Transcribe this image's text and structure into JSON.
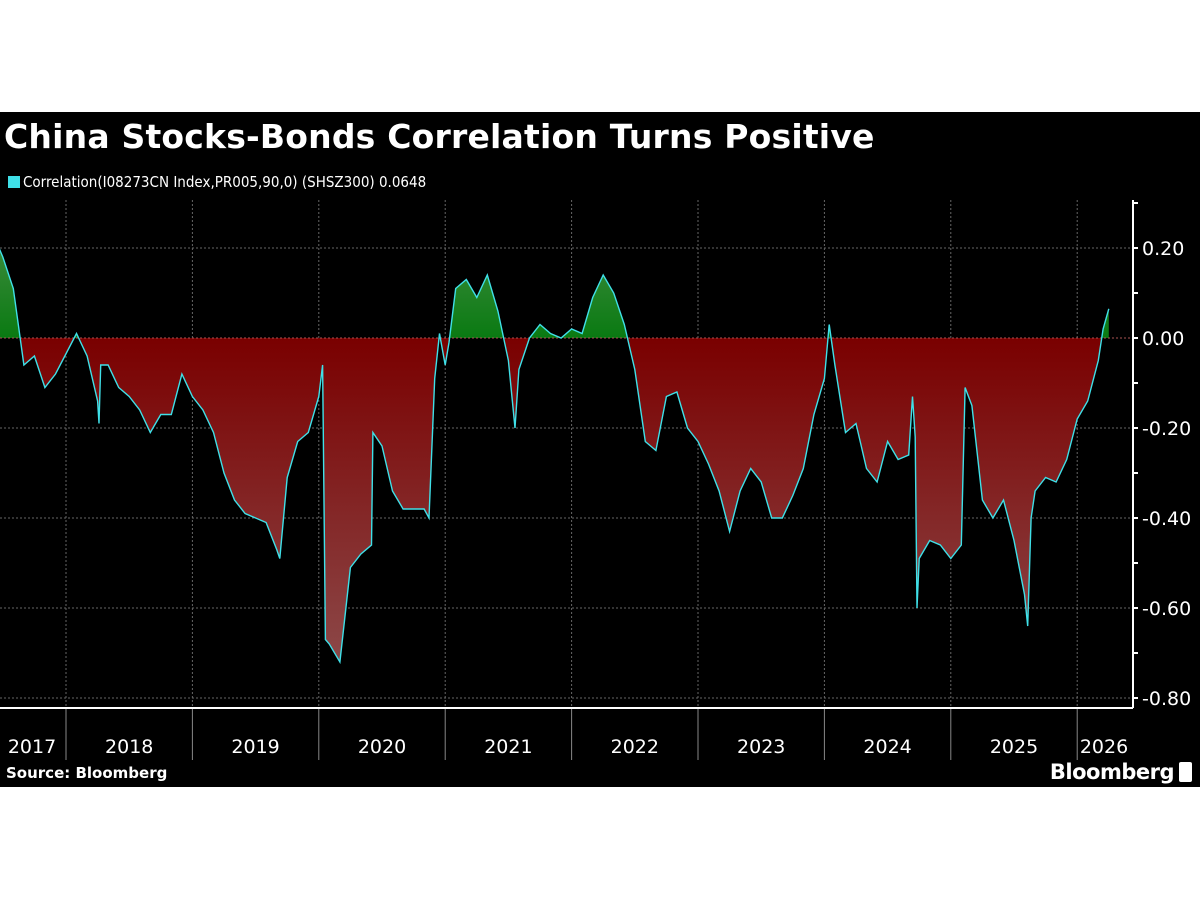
{
  "title": "China Stocks-Bonds Correlation Turns Positive",
  "source": "Source: Bloomberg",
  "brand": "Bloomberg",
  "colors": {
    "line": "#3fe0e8",
    "positive_fill": "#0a7a12",
    "negative_fill": "#7a0000",
    "background": "#000000"
  },
  "chart_data": {
    "type": "area",
    "title": "China Stocks-Bonds Correlation Turns Positive",
    "legend": [
      {
        "label": "Correlation(I08273CN Index,PR005,90,0) (SHSZ300) 0.0648",
        "color": "#3fe0e8"
      }
    ],
    "legend_placement": "top-left",
    "ylim": [
      -0.82,
      0.31
    ],
    "yticks": [
      0.2,
      0.0,
      -0.2,
      -0.4,
      -0.6,
      -0.8
    ],
    "ytick_labels": [
      "0.20",
      "0.00",
      "-0.20",
      "-0.40",
      "-0.60",
      "-0.80"
    ],
    "xtick_labels": [
      "2017",
      "2018",
      "2019",
      "2020",
      "2021",
      "2022",
      "2023",
      "2024",
      "2025",
      "2026"
    ],
    "grid": true,
    "y_axis_side": "right",
    "last_value": 0.0648,
    "series": [
      {
        "points": [
          [
            "2017-06-15",
            0.21
          ],
          [
            "2017-07-01",
            0.18
          ],
          [
            "2017-08-01",
            0.11
          ],
          [
            "2017-09-01",
            -0.06
          ],
          [
            "2017-10-01",
            -0.04
          ],
          [
            "2017-11-01",
            -0.11
          ],
          [
            "2017-12-01",
            -0.08
          ],
          [
            "2018-02-01",
            0.01
          ],
          [
            "2018-03-01",
            -0.04
          ],
          [
            "2018-04-01",
            -0.14
          ],
          [
            "2018-04-05",
            -0.19
          ],
          [
            "2018-04-10",
            -0.06
          ],
          [
            "2018-05-01",
            -0.06
          ],
          [
            "2018-06-01",
            -0.11
          ],
          [
            "2018-07-01",
            -0.13
          ],
          [
            "2018-08-01",
            -0.16
          ],
          [
            "2018-09-01",
            -0.21
          ],
          [
            "2018-10-01",
            -0.17
          ],
          [
            "2018-11-01",
            -0.17
          ],
          [
            "2018-12-01",
            -0.08
          ],
          [
            "2019-01-01",
            -0.13
          ],
          [
            "2019-02-01",
            -0.16
          ],
          [
            "2019-03-01",
            -0.21
          ],
          [
            "2019-04-01",
            -0.3
          ],
          [
            "2019-05-01",
            -0.36
          ],
          [
            "2019-06-01",
            -0.39
          ],
          [
            "2019-07-01",
            -0.4
          ],
          [
            "2019-08-01",
            -0.41
          ],
          [
            "2019-09-01",
            -0.47
          ],
          [
            "2019-09-10",
            -0.49
          ],
          [
            "2019-10-01",
            -0.31
          ],
          [
            "2019-11-01",
            -0.23
          ],
          [
            "2019-12-01",
            -0.21
          ],
          [
            "2020-01-01",
            -0.13
          ],
          [
            "2020-01-12",
            -0.06
          ],
          [
            "2020-01-20",
            -0.67
          ],
          [
            "2020-02-01",
            -0.68
          ],
          [
            "2020-03-01",
            -0.72
          ],
          [
            "2020-04-01",
            -0.51
          ],
          [
            "2020-05-01",
            -0.48
          ],
          [
            "2020-06-01",
            -0.46
          ],
          [
            "2020-06-05",
            -0.21
          ],
          [
            "2020-07-01",
            -0.24
          ],
          [
            "2020-08-01",
            -0.34
          ],
          [
            "2020-09-01",
            -0.38
          ],
          [
            "2020-10-01",
            -0.38
          ],
          [
            "2020-11-01",
            -0.38
          ],
          [
            "2020-11-15",
            -0.4
          ],
          [
            "2020-12-01",
            -0.09
          ],
          [
            "2020-12-15",
            0.01
          ],
          [
            "2021-01-01",
            -0.06
          ],
          [
            "2021-01-12",
            -0.01
          ],
          [
            "2021-02-01",
            0.11
          ],
          [
            "2021-03-01",
            0.13
          ],
          [
            "2021-04-01",
            0.09
          ],
          [
            "2021-05-01",
            0.14
          ],
          [
            "2021-06-01",
            0.06
          ],
          [
            "2021-07-01",
            -0.05
          ],
          [
            "2021-07-20",
            -0.2
          ],
          [
            "2021-08-01",
            -0.07
          ],
          [
            "2021-09-01",
            0.0
          ],
          [
            "2021-10-01",
            0.03
          ],
          [
            "2021-11-01",
            0.01
          ],
          [
            "2021-12-01",
            0.0
          ],
          [
            "2022-01-01",
            0.02
          ],
          [
            "2022-02-01",
            0.01
          ],
          [
            "2022-03-01",
            0.09
          ],
          [
            "2022-04-01",
            0.14
          ],
          [
            "2022-05-01",
            0.1
          ],
          [
            "2022-06-01",
            0.03
          ],
          [
            "2022-07-01",
            -0.07
          ],
          [
            "2022-08-01",
            -0.23
          ],
          [
            "2022-09-01",
            -0.25
          ],
          [
            "2022-10-01",
            -0.13
          ],
          [
            "2022-11-01",
            -0.12
          ],
          [
            "2022-12-01",
            -0.2
          ],
          [
            "2023-01-01",
            -0.23
          ],
          [
            "2023-02-01",
            -0.28
          ],
          [
            "2023-03-01",
            -0.34
          ],
          [
            "2023-04-01",
            -0.43
          ],
          [
            "2023-05-01",
            -0.34
          ],
          [
            "2023-06-01",
            -0.29
          ],
          [
            "2023-07-01",
            -0.32
          ],
          [
            "2023-08-01",
            -0.4
          ],
          [
            "2023-09-01",
            -0.4
          ],
          [
            "2023-10-01",
            -0.35
          ],
          [
            "2023-11-01",
            -0.29
          ],
          [
            "2023-12-01",
            -0.17
          ],
          [
            "2024-01-01",
            -0.09
          ],
          [
            "2024-01-15",
            0.03
          ],
          [
            "2024-02-01",
            -0.06
          ],
          [
            "2024-03-01",
            -0.21
          ],
          [
            "2024-04-01",
            -0.19
          ],
          [
            "2024-05-01",
            -0.29
          ],
          [
            "2024-06-01",
            -0.32
          ],
          [
            "2024-07-01",
            -0.23
          ],
          [
            "2024-08-01",
            -0.27
          ],
          [
            "2024-09-01",
            -0.26
          ],
          [
            "2024-09-12",
            -0.13
          ],
          [
            "2024-09-20",
            -0.22
          ],
          [
            "2024-09-25",
            -0.6
          ],
          [
            "2024-10-01",
            -0.49
          ],
          [
            "2024-11-01",
            -0.45
          ],
          [
            "2024-12-01",
            -0.46
          ],
          [
            "2025-01-01",
            -0.49
          ],
          [
            "2025-02-01",
            -0.46
          ],
          [
            "2025-02-12",
            -0.11
          ],
          [
            "2025-03-01",
            -0.15
          ],
          [
            "2025-04-01",
            -0.36
          ],
          [
            "2025-05-01",
            -0.4
          ],
          [
            "2025-06-01",
            -0.36
          ],
          [
            "2025-07-01",
            -0.45
          ],
          [
            "2025-08-01",
            -0.57
          ],
          [
            "2025-08-10",
            -0.64
          ],
          [
            "2025-08-20",
            -0.4
          ],
          [
            "2025-09-01",
            -0.34
          ],
          [
            "2025-10-01",
            -0.31
          ],
          [
            "2025-11-01",
            -0.32
          ],
          [
            "2025-12-01",
            -0.27
          ],
          [
            "2026-01-01",
            -0.18
          ],
          [
            "2026-02-01",
            -0.14
          ],
          [
            "2026-03-01",
            -0.05
          ],
          [
            "2026-03-15",
            0.02
          ],
          [
            "2026-04-01",
            0.0648
          ]
        ]
      }
    ]
  }
}
